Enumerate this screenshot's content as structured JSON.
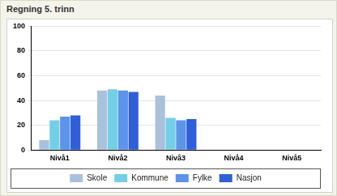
{
  "chart_data": {
    "type": "bar",
    "title": "Regning 5. trinn",
    "categories": [
      "Nivå1",
      "Nivå2",
      "Nivå3",
      "Nivå4",
      "Nivå5"
    ],
    "series": [
      {
        "name": "Skole",
        "color": "#aac1dd",
        "values": [
          8,
          48,
          44,
          null,
          null
        ]
      },
      {
        "name": "Kommune",
        "color": "#73cfe6",
        "values": [
          24,
          49,
          26,
          null,
          null
        ]
      },
      {
        "name": "Fylke",
        "color": "#5d93ea",
        "values": [
          27,
          48,
          24,
          null,
          null
        ]
      },
      {
        "name": "Nasjon",
        "color": "#2f5fd9",
        "values": [
          28,
          47,
          25,
          null,
          null
        ]
      }
    ],
    "ylim": [
      0,
      100
    ],
    "yticks": [
      0,
      20,
      40,
      60,
      80,
      100
    ],
    "grid": true,
    "legend": "bottom"
  }
}
